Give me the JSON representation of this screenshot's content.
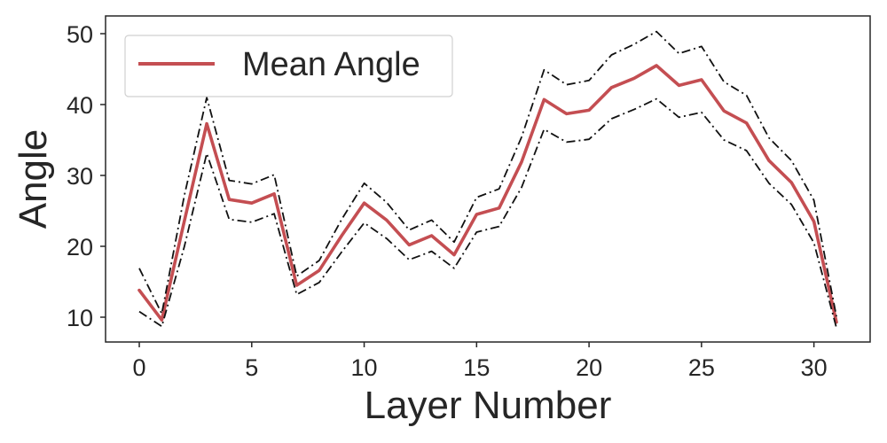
{
  "chart_data": {
    "type": "line",
    "title": "",
    "xlabel": "Layer Number",
    "ylabel": "Angle",
    "xlim": [
      -1.5,
      32.5
    ],
    "ylim": [
      6.5,
      52.5
    ],
    "xticks": [
      0,
      5,
      10,
      15,
      20,
      25,
      30
    ],
    "yticks": [
      10,
      20,
      30,
      40,
      50
    ],
    "grid": false,
    "legend": {
      "location": "top-left",
      "entries": [
        "Mean Angle"
      ]
    },
    "x": [
      0,
      1,
      2,
      3,
      4,
      5,
      6,
      7,
      8,
      9,
      10,
      11,
      12,
      13,
      14,
      15,
      16,
      17,
      18,
      19,
      20,
      21,
      22,
      23,
      24,
      25,
      26,
      27,
      28,
      29,
      30,
      31
    ],
    "series": [
      {
        "name": "Mean Angle",
        "style": "solid",
        "color": "#c44e52",
        "values": [
          13.8,
          9.6,
          23.5,
          37.3,
          26.6,
          26.1,
          27.4,
          14.5,
          16.6,
          21.5,
          26.1,
          23.7,
          20.2,
          21.5,
          18.8,
          24.5,
          25.4,
          31.9,
          40.7,
          38.7,
          39.2,
          42.4,
          43.7,
          45.5,
          42.7,
          43.5,
          39.1,
          37.4,
          32.1,
          29.0,
          23.5,
          9.3
        ]
      },
      {
        "style": "dashdot",
        "color": "#111111",
        "values": [
          16.9,
          10.5,
          27.1,
          41.0,
          29.3,
          28.8,
          30.1,
          15.8,
          18.0,
          23.8,
          28.9,
          26.2,
          22.3,
          23.7,
          20.6,
          26.9,
          28.1,
          35.4,
          44.9,
          42.8,
          43.4,
          47.0,
          48.5,
          50.3,
          47.2,
          48.2,
          43.2,
          41.3,
          35.3,
          32.1,
          26.5,
          10.1
        ]
      },
      {
        "style": "dashdot",
        "color": "#111111",
        "values": [
          10.8,
          8.7,
          19.9,
          33.1,
          23.8,
          23.4,
          24.6,
          13.2,
          14.9,
          19.2,
          23.3,
          21.1,
          18.1,
          19.3,
          16.9,
          22.0,
          22.8,
          28.3,
          36.5,
          34.7,
          35.1,
          38.0,
          39.3,
          40.8,
          38.2,
          38.9,
          35.0,
          33.5,
          28.9,
          25.9,
          20.5,
          8.5
        ]
      }
    ]
  }
}
